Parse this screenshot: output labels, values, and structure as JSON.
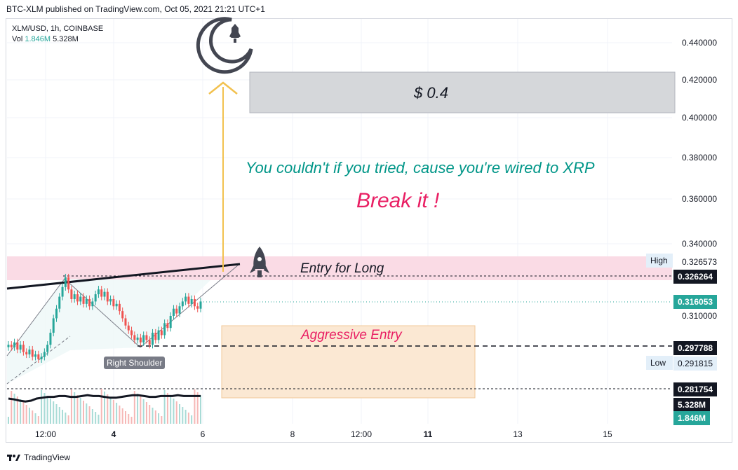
{
  "header": {
    "published": "BTC-XLM published on TradingView.com, Oct 05, 2021 21:21 UTC+1"
  },
  "legend": {
    "symbol": "XLM/USD, 1h, COINBASE",
    "vol_label": "Vol",
    "vol_value": "1.846M",
    "vol_ma": "5.328M"
  },
  "footer": {
    "brand": "TradingView"
  },
  "colors": {
    "up": "#26a69a",
    "down": "#ef5350",
    "accent_pink": "#e91e63",
    "accent_teal": "#009688",
    "arrow": "#f2c14e"
  },
  "price_tags": {
    "high_label": "High",
    "high_value": "0.326573",
    "entry_value": "0.326264",
    "last_value": "0.316053",
    "aggr_value": "0.297788",
    "low_label": "Low",
    "low_value": "0.291815",
    "bottom_value": "0.281754",
    "vol_ma_tag": "5.328M",
    "vol_tag": "1.846M"
  },
  "annotations": {
    "target": "$ 0.4",
    "wired": "You couldn't if you tried, cause you're wired to XRP",
    "break": "Break it !",
    "entry_long": "Entry for Long",
    "aggressive": "Aggressive Entry",
    "shoulder": "Right Shoulder"
  },
  "icons": [
    "moon-icon",
    "rocket-icon",
    "tradingview-logo-icon"
  ],
  "chart_data": {
    "type": "candlestick",
    "title": "XLM/USD, 1h, COINBASE",
    "y_ticks": [
      "0.440000",
      "0.420000",
      "0.400000",
      "0.380000",
      "0.360000",
      "0.340000",
      "0.310000"
    ],
    "x_ticks": [
      "12:00",
      "4",
      "6",
      "8",
      "12:00",
      "11",
      "13",
      "15"
    ],
    "ylim": [
      0.27,
      0.45
    ],
    "closes": [
      0.298,
      0.297,
      0.299,
      0.296,
      0.298,
      0.295,
      0.294,
      0.296,
      0.293,
      0.294,
      0.292,
      0.293,
      0.295,
      0.298,
      0.303,
      0.309,
      0.313,
      0.318,
      0.322,
      0.326,
      0.321,
      0.317,
      0.319,
      0.316,
      0.318,
      0.315,
      0.317,
      0.314,
      0.316,
      0.319,
      0.321,
      0.318,
      0.32,
      0.316,
      0.317,
      0.314,
      0.315,
      0.312,
      0.309,
      0.306,
      0.304,
      0.302,
      0.3,
      0.301,
      0.299,
      0.302,
      0.3,
      0.298,
      0.303,
      0.3,
      0.304,
      0.302,
      0.307,
      0.305,
      0.31,
      0.313,
      0.311,
      0.314,
      0.316,
      0.318,
      0.315,
      0.317,
      0.314,
      0.313,
      0.316
    ],
    "volume_ma": [
      0.6,
      0.58,
      0.55,
      0.53,
      0.55,
      0.6,
      0.62,
      0.64,
      0.64,
      0.66,
      0.66,
      0.64,
      0.64,
      0.66,
      0.68,
      0.66,
      0.66,
      0.64,
      0.62,
      0.62,
      0.64,
      0.66,
      0.68,
      0.68,
      0.66,
      0.64,
      0.64,
      0.66,
      0.66,
      0.66,
      0.68,
      0.66,
      0.66,
      0.66,
      0.66
    ]
  }
}
